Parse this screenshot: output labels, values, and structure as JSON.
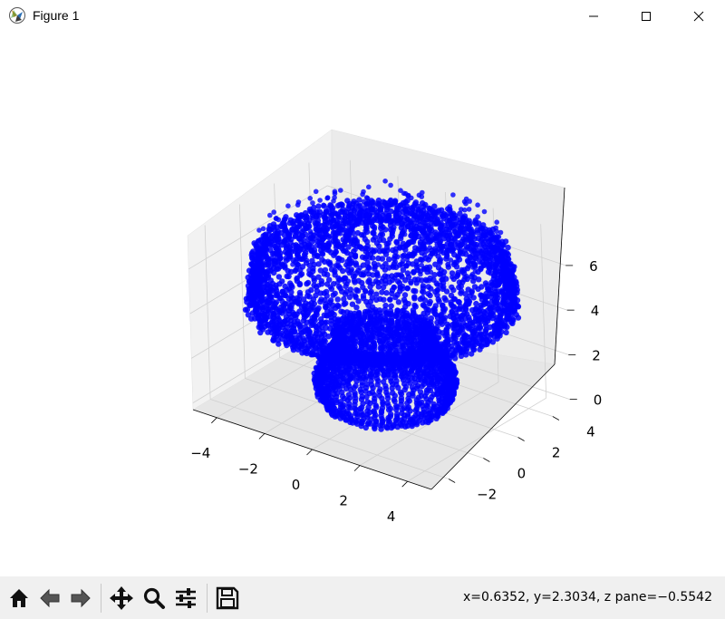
{
  "window": {
    "title": "Figure 1",
    "controls": [
      "minimize",
      "maximize",
      "close"
    ]
  },
  "toolbar": {
    "buttons": [
      {
        "name": "home",
        "icon": "home-icon"
      },
      {
        "name": "back",
        "icon": "back-arrow-icon"
      },
      {
        "name": "forward",
        "icon": "forward-arrow-icon"
      },
      {
        "name": "pan",
        "icon": "move-icon"
      },
      {
        "name": "zoom",
        "icon": "zoom-icon"
      },
      {
        "name": "configure-subplots",
        "icon": "sliders-icon"
      },
      {
        "name": "save",
        "icon": "save-icon"
      }
    ],
    "status": "x=0.6352, y=2.3034, z pane=−0.5542"
  },
  "chart_data": {
    "type": "scatter",
    "projection": "3d",
    "marker_color": "#0000ff",
    "x_ticks": [
      "−4",
      "−2",
      "0",
      "2",
      "4"
    ],
    "y_ticks": [
      "−2",
      "0",
      "2",
      "4"
    ],
    "z_ticks": [
      "0",
      "2",
      "4",
      "6"
    ],
    "xlim": [
      -5,
      5
    ],
    "ylim": [
      -3,
      5
    ],
    "zlim": [
      -0.3,
      7.5
    ],
    "grid": true,
    "shape": "dense point cloud resembling a mushroom: wide cap on top (z≈4–7.5), narrower stem below (z≈0–3)"
  }
}
